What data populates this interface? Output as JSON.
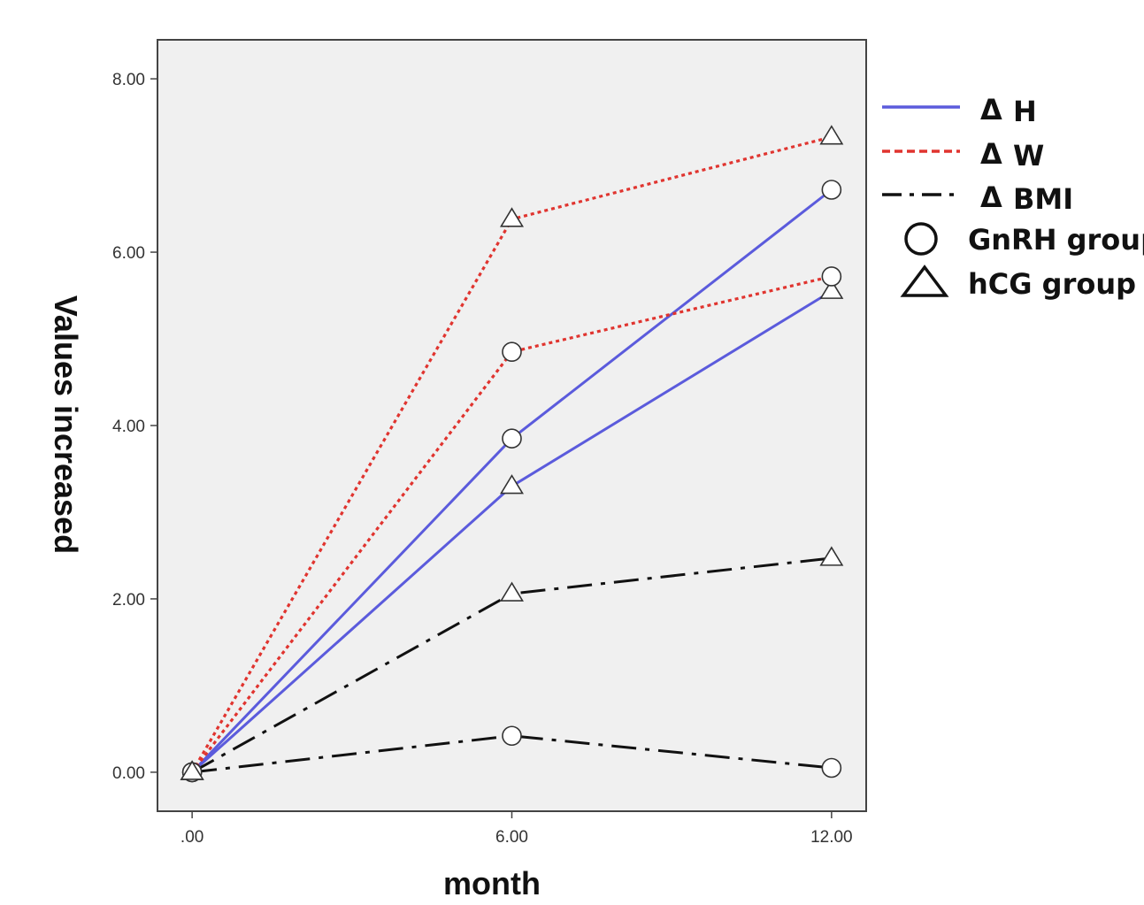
{
  "chart_data": {
    "type": "line",
    "xlabel": "month",
    "ylabel": "Values increased",
    "x": [
      0,
      6,
      12
    ],
    "x_tick_labels": [
      ".00",
      "6.00",
      "12.00"
    ],
    "y_ticks": [
      0,
      2,
      4,
      6,
      8
    ],
    "y_tick_labels": [
      "0.00",
      "2.00",
      "4.00",
      "6.00",
      "8.00"
    ],
    "xlim": [
      -0.65,
      12.65
    ],
    "ylim": [
      -0.45,
      8.45
    ],
    "grid": false,
    "legend_position": "right",
    "colors": {
      "H": "#5b5bdc",
      "W": "#e0342f",
      "BMI": "#111111",
      "plot_background": "#f0f0f0"
    },
    "legend": {
      "lines": [
        {
          "prefix": "Δ",
          "label": "H",
          "measure": "H"
        },
        {
          "prefix": "Δ",
          "label": "W",
          "measure": "W"
        },
        {
          "prefix": "Δ",
          "label": "BMI",
          "measure": "BMI"
        }
      ],
      "markers": [
        {
          "label": "GnRH group",
          "marker": "circle"
        },
        {
          "label": "hCG group",
          "marker": "triangle"
        }
      ]
    },
    "series": [
      {
        "measure": "H",
        "group": "GnRH group",
        "marker": "circle",
        "values": [
          0,
          3.85,
          6.72
        ]
      },
      {
        "measure": "H",
        "group": "hCG group",
        "marker": "triangle",
        "values": [
          0,
          3.3,
          5.55
        ]
      },
      {
        "measure": "W",
        "group": "GnRH group",
        "marker": "circle",
        "values": [
          0,
          4.85,
          5.72
        ]
      },
      {
        "measure": "W",
        "group": "hCG group",
        "marker": "triangle",
        "values": [
          0,
          6.38,
          7.33
        ]
      },
      {
        "measure": "BMI",
        "group": "GnRH group",
        "marker": "circle",
        "values": [
          0,
          0.42,
          0.05
        ]
      },
      {
        "measure": "BMI",
        "group": "hCG group",
        "marker": "triangle",
        "values": [
          0,
          2.06,
          2.47
        ]
      }
    ]
  }
}
